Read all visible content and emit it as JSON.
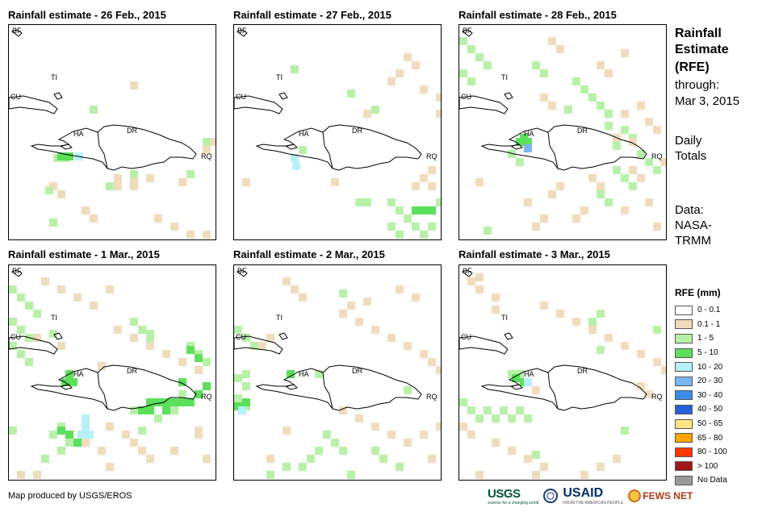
{
  "panels": [
    {
      "title": "Rainfall estimate - 26 Feb., 2015",
      "variant": 0
    },
    {
      "title": "Rainfall estimate - 27 Feb., 2015",
      "variant": 1
    },
    {
      "title": "Rainfall estimate - 28 Feb., 2015",
      "variant": 2
    },
    {
      "title": "Rainfall estimate - 1 Mar., 2015",
      "variant": 3
    },
    {
      "title": "Rainfall estimate - 2 Mar., 2015",
      "variant": 4
    },
    {
      "title": "Rainfall estimate - 3 Mar., 2015",
      "variant": 5
    }
  ],
  "map_labels": {
    "bf": "BF",
    "ti": "TI",
    "cu": "CU",
    "ha": "HA",
    "dr": "DR",
    "rq": "RQ"
  },
  "right_title": {
    "line1": "Rainfall",
    "line2": "Estimate",
    "line3": "(RFE)",
    "line4": "through:",
    "line5": "Mar 3, 2015",
    "daily1": "Daily",
    "daily2": "Totals",
    "data1": "Data:",
    "data2": "NASA-",
    "data3": "TRMM"
  },
  "legend": {
    "title": "RFE (mm)",
    "items": [
      {
        "label": "0 - 0.1",
        "color": "#ffffff"
      },
      {
        "label": "0.1 - 1",
        "color": "#f0dcbc"
      },
      {
        "label": "1 - 5",
        "color": "#b9f0a9"
      },
      {
        "label": "5 - 10",
        "color": "#5ce05c"
      },
      {
        "label": "10 - 20",
        "color": "#b8f0f8"
      },
      {
        "label": "20 - 30",
        "color": "#7ab6f0"
      },
      {
        "label": "30 - 40",
        "color": "#3a8ce8"
      },
      {
        "label": "40 - 50",
        "color": "#2460d8"
      },
      {
        "label": "50 - 65",
        "color": "#ffe680"
      },
      {
        "label": "65 - 80",
        "color": "#ffa500"
      },
      {
        "label": "80 - 100",
        "color": "#ff3a00"
      },
      {
        "label": "> 100",
        "color": "#a01818"
      },
      {
        "label": "No Data",
        "color": "#9a9a9a"
      }
    ]
  },
  "footer": "Map produced by USGS/EROS",
  "logos": {
    "usgs": "USGS",
    "usgs_tag": "science for a changing world",
    "usaid": "USAID",
    "usaid_tag": "FROM THE AMERICAN PEOPLE",
    "fews": "FEWS NET"
  }
}
